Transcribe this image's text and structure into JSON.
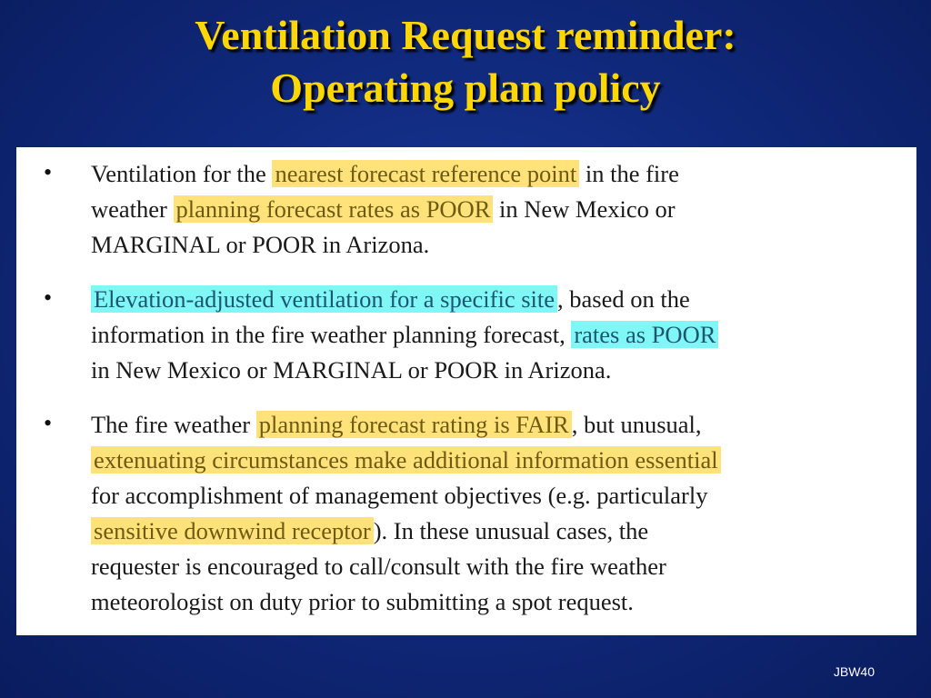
{
  "slide": {
    "title_line1": "Ventilation Request reminder:",
    "title_line2": "Operating plan policy",
    "footer": "JBW40"
  },
  "bullets": [
    {
      "symbol": "•",
      "lines": [
        [
          "Ventilation for the ",
          "nearest forecast reference point",
          " in the fire"
        ],
        [
          "weather ",
          "planning forecast rates as POOR",
          " in New Mexico or"
        ],
        [
          "MARGINAL or POOR in Arizona."
        ]
      ]
    },
    {
      "symbol": "•",
      "lines": [
        [
          "Elevation-adjusted ventilation for a specific site",
          ", based on the"
        ],
        [
          "information in the fire weather planning forecast, ",
          "rates as POOR"
        ],
        [
          "in New Mexico or MARGINAL or POOR in Arizona."
        ]
      ]
    },
    {
      "symbol": "•",
      "lines": [
        [
          "The fire weather ",
          "planning forecast rating is FAIR",
          ", but unusual,"
        ],
        [
          "extenuating circumstances make additional information essential"
        ],
        [
          "for accomplishment of management objectives (e.g. particularly"
        ],
        [
          "sensitive downwind receptor",
          "). In these unusual cases, the"
        ],
        [
          "requester is encouraged to call/consult with the fire weather"
        ],
        [
          "meteorologist on duty prior to submitting a spot request."
        ]
      ]
    }
  ],
  "highlight_colors": {
    "yellow": "#ffe27a",
    "cyan": "#7ff7f7"
  }
}
